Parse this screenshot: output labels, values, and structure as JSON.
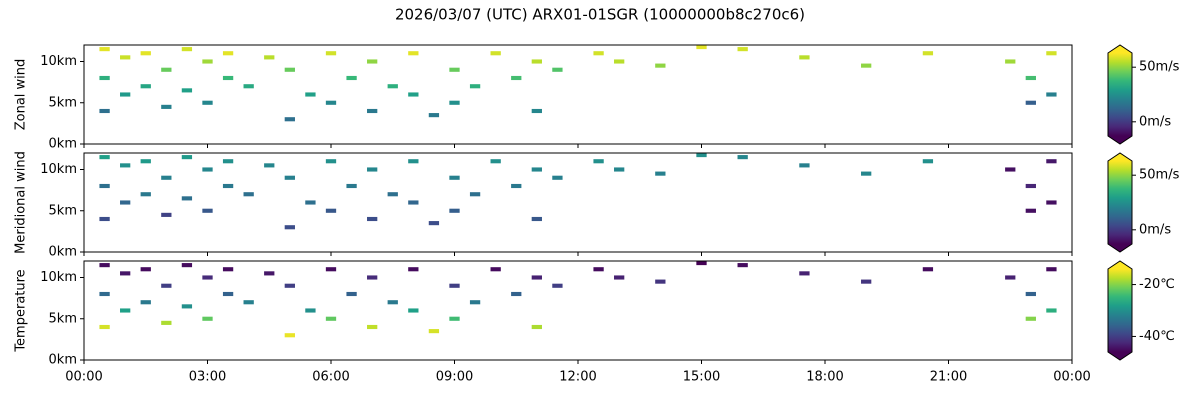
{
  "chart_data": [
    {
      "type": "heatmap",
      "title": "2026/03/07 (UTC) ARX01-01SGR (10000000b8c270c6)",
      "ylabel": "Zonal wind",
      "colormap": "viridis",
      "xlim": [
        0,
        24
      ],
      "ylim": [
        0,
        12
      ],
      "clim": [
        -13,
        63
      ],
      "yticks": [
        {
          "value": 0,
          "label": "0km"
        },
        {
          "value": 5,
          "label": "5km"
        },
        {
          "value": 10,
          "label": "10km"
        }
      ],
      "cticks": [
        {
          "value": 0,
          "label": "0m/s"
        },
        {
          "value": 50,
          "label": "50m/s"
        }
      ],
      "x": [
        0.5,
        0.5,
        0.5,
        1.0,
        1.0,
        1.5,
        1.5,
        2.0,
        2.0,
        2.5,
        2.5,
        3.0,
        3.0,
        3.5,
        3.5,
        4.0,
        4.5,
        5.0,
        5.0,
        5.5,
        6.0,
        6.0,
        6.5,
        7.0,
        7.0,
        7.5,
        8.0,
        8.0,
        8.5,
        9.0,
        9.0,
        9.5,
        10.0,
        10.5,
        11.0,
        11.0,
        11.5,
        12.5,
        13.0,
        14.0,
        15.0,
        16.0,
        17.5,
        19.0,
        20.5,
        22.5,
        23.0,
        23.0,
        23.5,
        23.5
      ],
      "y": [
        11.5,
        8,
        4,
        10.5,
        6,
        11,
        7,
        9,
        4.5,
        11.5,
        6.5,
        10,
        5,
        11,
        8,
        7,
        10.5,
        9,
        3,
        6,
        11,
        5,
        8,
        10,
        4,
        7,
        11,
        6,
        3.5,
        9,
        5,
        7,
        11,
        8,
        10,
        4,
        9,
        11,
        10,
        9.5,
        12,
        11.5,
        10.5,
        9.5,
        11,
        10,
        8,
        5,
        11,
        6
      ],
      "values": [
        60,
        35,
        15,
        57,
        28,
        60,
        32,
        45,
        20,
        58,
        30,
        52,
        22,
        60,
        38,
        33,
        55,
        45,
        15,
        30,
        58,
        22,
        38,
        50,
        18,
        35,
        60,
        30,
        18,
        45,
        25,
        35,
        58,
        40,
        55,
        22,
        42,
        58,
        55,
        50,
        60,
        58,
        55,
        50,
        58,
        52,
        40,
        10,
        58,
        20
      ]
    },
    {
      "type": "heatmap",
      "ylabel": "Meridional wind",
      "colormap": "viridis",
      "xlim": [
        0,
        24
      ],
      "ylim": [
        0,
        12
      ],
      "clim": [
        -13,
        63
      ],
      "yticks": [
        {
          "value": 0,
          "label": "0km"
        },
        {
          "value": 5,
          "label": "5km"
        },
        {
          "value": 10,
          "label": "10km"
        }
      ],
      "cticks": [
        {
          "value": 0,
          "label": "0m/s"
        },
        {
          "value": 50,
          "label": "50m/s"
        }
      ],
      "x": [
        0.5,
        0.5,
        0.5,
        1.0,
        1.0,
        1.5,
        1.5,
        2.0,
        2.0,
        2.5,
        2.5,
        3.0,
        3.0,
        3.5,
        3.5,
        4.0,
        4.5,
        5.0,
        5.0,
        5.5,
        6.0,
        6.0,
        6.5,
        7.0,
        7.0,
        7.5,
        8.0,
        8.0,
        8.5,
        9.0,
        9.0,
        9.5,
        10.0,
        10.5,
        11.0,
        11.0,
        11.5,
        12.5,
        13.0,
        14.0,
        15.0,
        16.0,
        17.5,
        19.0,
        20.5,
        22.5,
        23.0,
        23.0,
        23.5,
        23.5
      ],
      "y": [
        11.5,
        8,
        4,
        10.5,
        6,
        11,
        7,
        9,
        4.5,
        11.5,
        6.5,
        10,
        5,
        11,
        8,
        7,
        10.5,
        9,
        3,
        6,
        11,
        5,
        8,
        10,
        4,
        7,
        11,
        6,
        3.5,
        9,
        5,
        7,
        11,
        8,
        10,
        4,
        9,
        11,
        10,
        9.5,
        12,
        11.5,
        10.5,
        9.5,
        11,
        10,
        8,
        5,
        11,
        6
      ],
      "values": [
        30,
        15,
        5,
        25,
        12,
        28,
        18,
        20,
        2,
        28,
        15,
        22,
        8,
        25,
        18,
        15,
        22,
        20,
        5,
        15,
        25,
        8,
        18,
        22,
        5,
        15,
        25,
        12,
        5,
        20,
        10,
        15,
        25,
        18,
        22,
        8,
        20,
        25,
        22,
        20,
        25,
        22,
        20,
        22,
        25,
        -10,
        -5,
        -10,
        -8,
        -10
      ]
    },
    {
      "type": "heatmap",
      "ylabel": "Temperature",
      "colormap": "viridis",
      "xlim": [
        0,
        24
      ],
      "ylim": [
        0,
        12
      ],
      "clim": [
        -46,
        -14
      ],
      "yticks": [
        {
          "value": 0,
          "label": "0km"
        },
        {
          "value": 5,
          "label": "5km"
        },
        {
          "value": 10,
          "label": "10km"
        }
      ],
      "cticks": [
        {
          "value": -40,
          "label": "-40℃"
        },
        {
          "value": -20,
          "label": "-20℃"
        }
      ],
      "xticks": [
        {
          "value": 0,
          "label": "00:00"
        },
        {
          "value": 3,
          "label": "03:00"
        },
        {
          "value": 6,
          "label": "06:00"
        },
        {
          "value": 9,
          "label": "09:00"
        },
        {
          "value": 12,
          "label": "12:00"
        },
        {
          "value": 15,
          "label": "15:00"
        },
        {
          "value": 18,
          "label": "18:00"
        },
        {
          "value": 21,
          "label": "21:00"
        },
        {
          "value": 24,
          "label": "00:00"
        }
      ],
      "x": [
        0.5,
        0.5,
        0.5,
        1.0,
        1.0,
        1.5,
        1.5,
        2.0,
        2.0,
        2.5,
        2.5,
        3.0,
        3.0,
        3.5,
        3.5,
        4.0,
        4.5,
        5.0,
        5.0,
        5.5,
        6.0,
        6.0,
        6.5,
        7.0,
        7.0,
        7.5,
        8.0,
        8.0,
        8.5,
        9.0,
        9.0,
        9.5,
        10.0,
        10.5,
        11.0,
        11.0,
        11.5,
        12.5,
        13.0,
        14.0,
        15.0,
        16.0,
        17.5,
        19.0,
        20.5,
        22.5,
        23.0,
        23.0,
        23.5,
        23.5
      ],
      "y": [
        11.5,
        8,
        4,
        10.5,
        6,
        11,
        7,
        9,
        4.5,
        11.5,
        6.5,
        10,
        5,
        11,
        8,
        7,
        10.5,
        9,
        3,
        6,
        11,
        5,
        8,
        10,
        4,
        7,
        11,
        6,
        3.5,
        9,
        5,
        7,
        11,
        8,
        10,
        4,
        9,
        11,
        10,
        9.5,
        12,
        11.5,
        10.5,
        9.5,
        11,
        10,
        8,
        5,
        11,
        6
      ],
      "values": [
        -45,
        -35,
        -16,
        -44,
        -28,
        -45,
        -33,
        -40,
        -18,
        -45,
        -30,
        -42,
        -22,
        -45,
        -36,
        -32,
        -44,
        -40,
        -15,
        -30,
        -45,
        -22,
        -36,
        -42,
        -17,
        -33,
        -45,
        -28,
        -16,
        -40,
        -24,
        -33,
        -45,
        -36,
        -43,
        -18,
        -40,
        -45,
        -43,
        -41,
        -46,
        -45,
        -43,
        -41,
        -45,
        -43,
        -36,
        -20,
        -45,
        -26
      ]
    }
  ]
}
